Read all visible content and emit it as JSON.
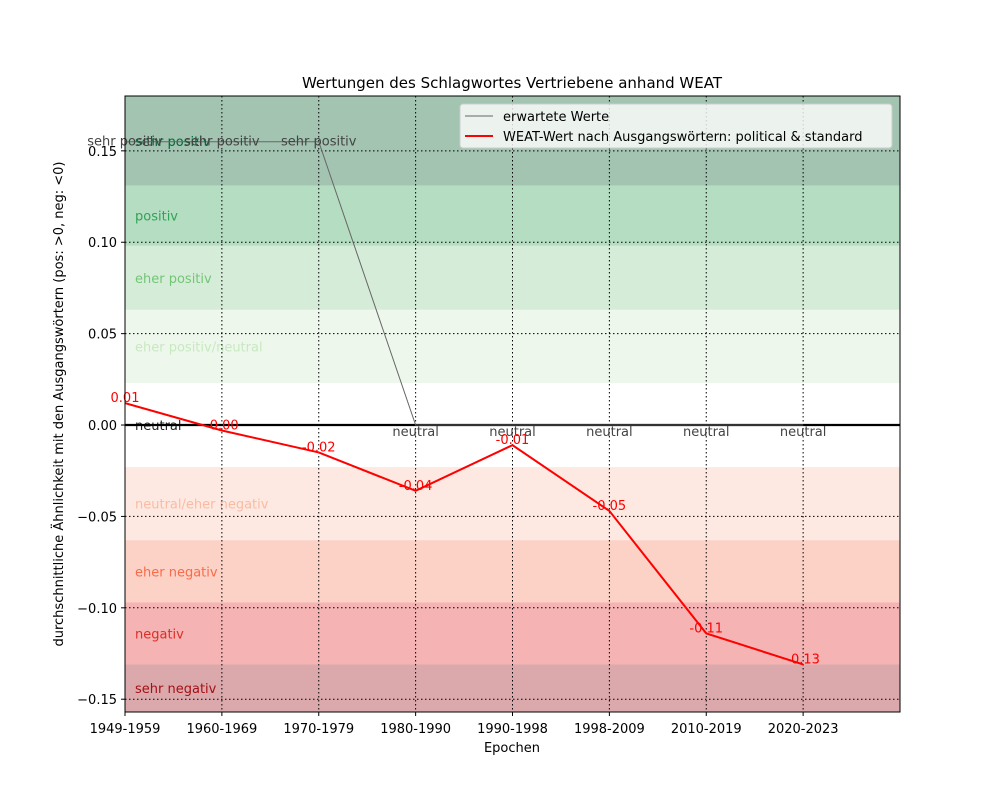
{
  "chart_data": {
    "type": "line",
    "title": "Wertungen des Schlagwortes Vertriebene anhand WEAT",
    "xlabel": "Epochen",
    "ylabel": "durchschnittliche Ähnlichkeit mit den Ausgangswörtern (pos: >0, neg: <0)",
    "categories": [
      "1949-1959",
      "1960-1969",
      "1970-1979",
      "1980-1990",
      "1990-1998",
      "1998-2009",
      "2010-2019",
      "2020-2023"
    ],
    "x_range": [
      0,
      8
    ],
    "ylim": [
      -0.157,
      0.18
    ],
    "yticks": [
      -0.15,
      -0.1,
      -0.05,
      0.0,
      0.05,
      0.1,
      0.15
    ],
    "ytick_labels": [
      "−0.15",
      "−0.10",
      "−0.05",
      "0.00",
      "0.05",
      "0.10",
      "0.15"
    ],
    "grid": true,
    "legend_position": "top-right",
    "bands": [
      {
        "label": "sehr positiv",
        "from": 0.131,
        "to": 0.18,
        "color": "#a2c4b1"
      },
      {
        "label": "positiv",
        "from": 0.098,
        "to": 0.131,
        "color": "#b5ddc2"
      },
      {
        "label": "eher positiv",
        "from": 0.063,
        "to": 0.098,
        "color": "#d5edd8"
      },
      {
        "label": "eher positiv/neutral",
        "from": 0.023,
        "to": 0.063,
        "color": "#eef7ec"
      },
      {
        "label": "neutral",
        "from": -0.023,
        "to": 0.023,
        "color": "#ffffff"
      },
      {
        "label": "neutral/eher negativ",
        "from": -0.063,
        "to": -0.023,
        "color": "#fde9e2"
      },
      {
        "label": "eher negativ",
        "from": -0.097,
        "to": -0.063,
        "color": "#fcd2c6"
      },
      {
        "label": "negativ",
        "from": -0.131,
        "to": -0.097,
        "color": "#f5b3b3"
      },
      {
        "label": "sehr negativ",
        "from": -0.157,
        "to": -0.131,
        "color": "#dba9ab"
      }
    ],
    "band_label_colors": [
      "#006837",
      "#31a354",
      "#74c476",
      "#c7e9c0",
      "#222222",
      "#fcbba1",
      "#fb6a4a",
      "#de2d26",
      "#a50f15"
    ],
    "series": [
      {
        "name": "erwartete Werte",
        "color": "#666666",
        "x": [
          0,
          1,
          2,
          3,
          4,
          5,
          6,
          7
        ],
        "values": [
          0.155,
          0.155,
          0.155,
          0.0,
          0.0,
          0.0,
          0.0,
          0.0
        ],
        "point_labels": [
          "sehr positiv",
          "sehr positiv",
          "sehr positiv",
          "neutral",
          "neutral",
          "neutral",
          "neutral",
          "neutral"
        ]
      },
      {
        "name": "WEAT-Wert nach Ausgangswörtern: political & standard",
        "color": "#ff0000",
        "x": [
          0,
          1,
          2,
          3,
          4,
          5,
          6,
          7
        ],
        "values": [
          0.012,
          -0.003,
          -0.015,
          -0.036,
          -0.011,
          -0.047,
          -0.114,
          -0.131
        ],
        "data_labels": [
          "0.01",
          "-0.00",
          "-0.02",
          "-0.04",
          "-0.01",
          "-0.05",
          "-0.11",
          "-0.13"
        ]
      }
    ]
  }
}
